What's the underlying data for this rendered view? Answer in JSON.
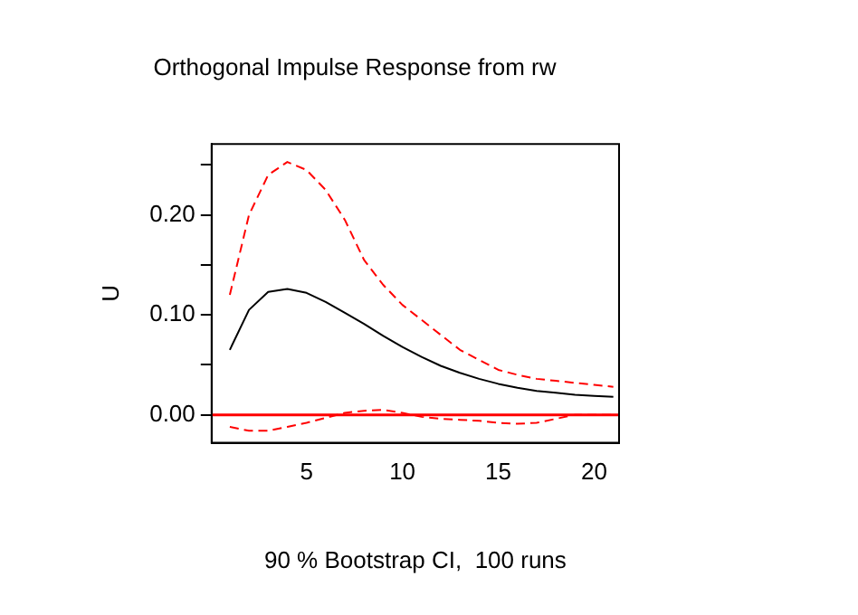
{
  "chart_data": {
    "type": "line",
    "title": "Orthogonal Impulse Response from rw",
    "xlabel": "90 % Bootstrap CI,  100 runs",
    "ylabel": "U",
    "x": [
      1,
      2,
      3,
      4,
      5,
      6,
      7,
      8,
      9,
      10,
      11,
      12,
      13,
      14,
      15,
      16,
      17,
      18,
      19,
      20,
      21
    ],
    "series": [
      {
        "color": "#000000",
        "line_style": "solid",
        "values": [
          0.065,
          0.105,
          0.123,
          0.126,
          0.122,
          0.113,
          0.102,
          0.091,
          0.079,
          0.068,
          0.058,
          0.049,
          0.042,
          0.036,
          0.031,
          0.027,
          0.024,
          0.022,
          0.02,
          0.019,
          0.018
        ]
      },
      {
        "color": "#ff0000",
        "line_style": "dashed",
        "values": [
          0.12,
          0.2,
          0.24,
          0.253,
          0.245,
          0.225,
          0.195,
          0.155,
          0.13,
          0.11,
          0.095,
          0.08,
          0.065,
          0.055,
          0.045,
          0.04,
          0.036,
          0.034,
          0.032,
          0.03,
          0.028
        ]
      },
      {
        "color": "#ff0000",
        "line_style": "dashed",
        "values": [
          -0.012,
          -0.016,
          -0.016,
          -0.012,
          -0.008,
          -0.003,
          0.002,
          0.004,
          0.005,
          0.002,
          -0.002,
          -0.004,
          -0.005,
          -0.006,
          -0.008,
          -0.009,
          -0.008,
          -0.004,
          0.0,
          0.0,
          0.0
        ]
      }
    ],
    "xlim": [
      0.05,
      21.3
    ],
    "xticks": [
      5,
      10,
      15,
      20
    ],
    "ylim": [
      -0.028,
      0.271
    ],
    "yticks": [
      {
        "value": 0,
        "label": "0.00"
      },
      {
        "value": 0.05,
        "label": null
      },
      {
        "value": 0.1,
        "label": "0.10"
      },
      {
        "value": 0.15,
        "label": null
      },
      {
        "value": 0.2,
        "label": "0.20"
      },
      {
        "value": 0.25,
        "label": null
      }
    ],
    "ref_lines": [
      {
        "axis": "y",
        "value": 0,
        "color": "#ff0000"
      }
    ],
    "grid": false,
    "legend": false,
    "marker": "none"
  }
}
